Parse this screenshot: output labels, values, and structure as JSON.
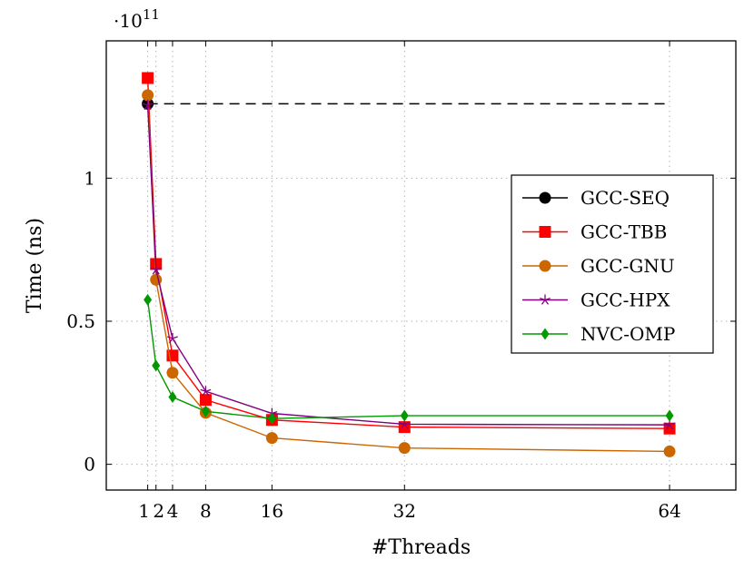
{
  "chart_data": {
    "type": "line",
    "xlabel": "#Threads",
    "ylabel": "Time (ns)",
    "y_exponent_label": "·10",
    "y_exponent_power": "11",
    "xlim": [
      -4,
      72
    ],
    "ylim": [
      -0.09,
      1.48
    ],
    "x_ticks": [
      1,
      2,
      4,
      8,
      16,
      32,
      64
    ],
    "x_tick_labels": [
      "1",
      "2",
      "4",
      "8",
      "16",
      "32",
      "64"
    ],
    "y_ticks": [
      0,
      0.5,
      1
    ],
    "y_tick_labels": [
      "0",
      "0.5",
      "1"
    ],
    "grid": true,
    "legend_position": "right",
    "series": [
      {
        "name": "GCC-SEQ",
        "color": "#000000",
        "marker": "circle",
        "line_style": "dashed",
        "x": [
          1,
          64
        ],
        "y": [
          1.26,
          1.26
        ]
      },
      {
        "name": "GCC-TBB",
        "color": "#ff0000",
        "marker": "square",
        "line_style": "solid",
        "x": [
          1,
          2,
          4,
          8,
          16,
          32,
          64
        ],
        "y": [
          1.35,
          0.7,
          0.38,
          0.225,
          0.155,
          0.13,
          0.125
        ]
      },
      {
        "name": "GCC-GNU",
        "color": "#cc6600",
        "marker": "circle",
        "line_style": "solid",
        "x": [
          1,
          2,
          4,
          8,
          16,
          32,
          64
        ],
        "y": [
          1.29,
          0.645,
          0.32,
          0.18,
          0.092,
          0.057,
          0.045
        ]
      },
      {
        "name": "GCC-HPX",
        "color": "#800080",
        "marker": "star",
        "line_style": "solid",
        "x": [
          1,
          2,
          4,
          8,
          16,
          32,
          64
        ],
        "y": [
          1.255,
          0.68,
          0.44,
          0.255,
          0.178,
          0.14,
          0.138
        ]
      },
      {
        "name": "NVC-OMP",
        "color": "#009900",
        "marker": "diamond",
        "line_style": "solid",
        "x": [
          1,
          2,
          4,
          8,
          16,
          32,
          64
        ],
        "y": [
          0.575,
          0.345,
          0.235,
          0.185,
          0.16,
          0.17,
          0.17
        ]
      }
    ]
  }
}
